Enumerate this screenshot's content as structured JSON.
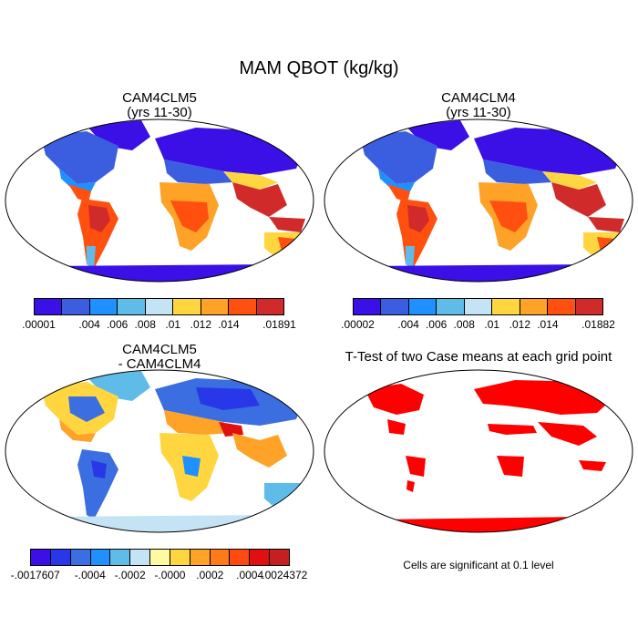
{
  "figure": {
    "title": "MAM QBOT (kg/kg)"
  },
  "panels": [
    {
      "id": "p1",
      "title_line1": "CAM4CLM5",
      "title_line2": "(yrs 11-30)",
      "colorbar": {
        "colors": [
          "#3a10e6",
          "#3b5ee0",
          "#1e90ff",
          "#5fbce8",
          "#c4e3f5",
          "#ffd640",
          "#ffa228",
          "#ff5010",
          "#d12a2a"
        ],
        "labels": [
          ".00001",
          ".004",
          ".006",
          ".008",
          ".01",
          ".012",
          ".014",
          ".01891"
        ]
      }
    },
    {
      "id": "p2",
      "title_line1": "CAM4CLM4",
      "title_line2": "(yrs 11-30)",
      "colorbar": {
        "colors": [
          "#3a10e6",
          "#3b5ee0",
          "#1e90ff",
          "#5fbce8",
          "#c4e3f5",
          "#ffd640",
          "#ffa228",
          "#ff5010",
          "#d12a2a"
        ],
        "labels": [
          ".00002",
          ".004",
          ".006",
          ".008",
          ".01",
          ".012",
          ".014",
          ".01882"
        ]
      }
    },
    {
      "id": "p3",
      "title_line1": "CAM4CLM5",
      "title_line2": "- CAM4CLM4",
      "colorbar": {
        "colors": [
          "#3a10e6",
          "#2838e8",
          "#3b6ee0",
          "#1e90ff",
          "#5fbce8",
          "#c4e3f5",
          "#fffaa0",
          "#ffd640",
          "#ffa228",
          "#ff7a18",
          "#ff4a10",
          "#e01010",
          "#c42020"
        ],
        "labels": [
          "-.0017607",
          "-.0004",
          "-.0002",
          "-.0000",
          ".0002",
          ".0004",
          ".0024372"
        ]
      }
    },
    {
      "id": "p4",
      "title_line1": "T-Test of two Case means at each grid point",
      "note": "Cells are significant at 0.1 level"
    }
  ]
}
